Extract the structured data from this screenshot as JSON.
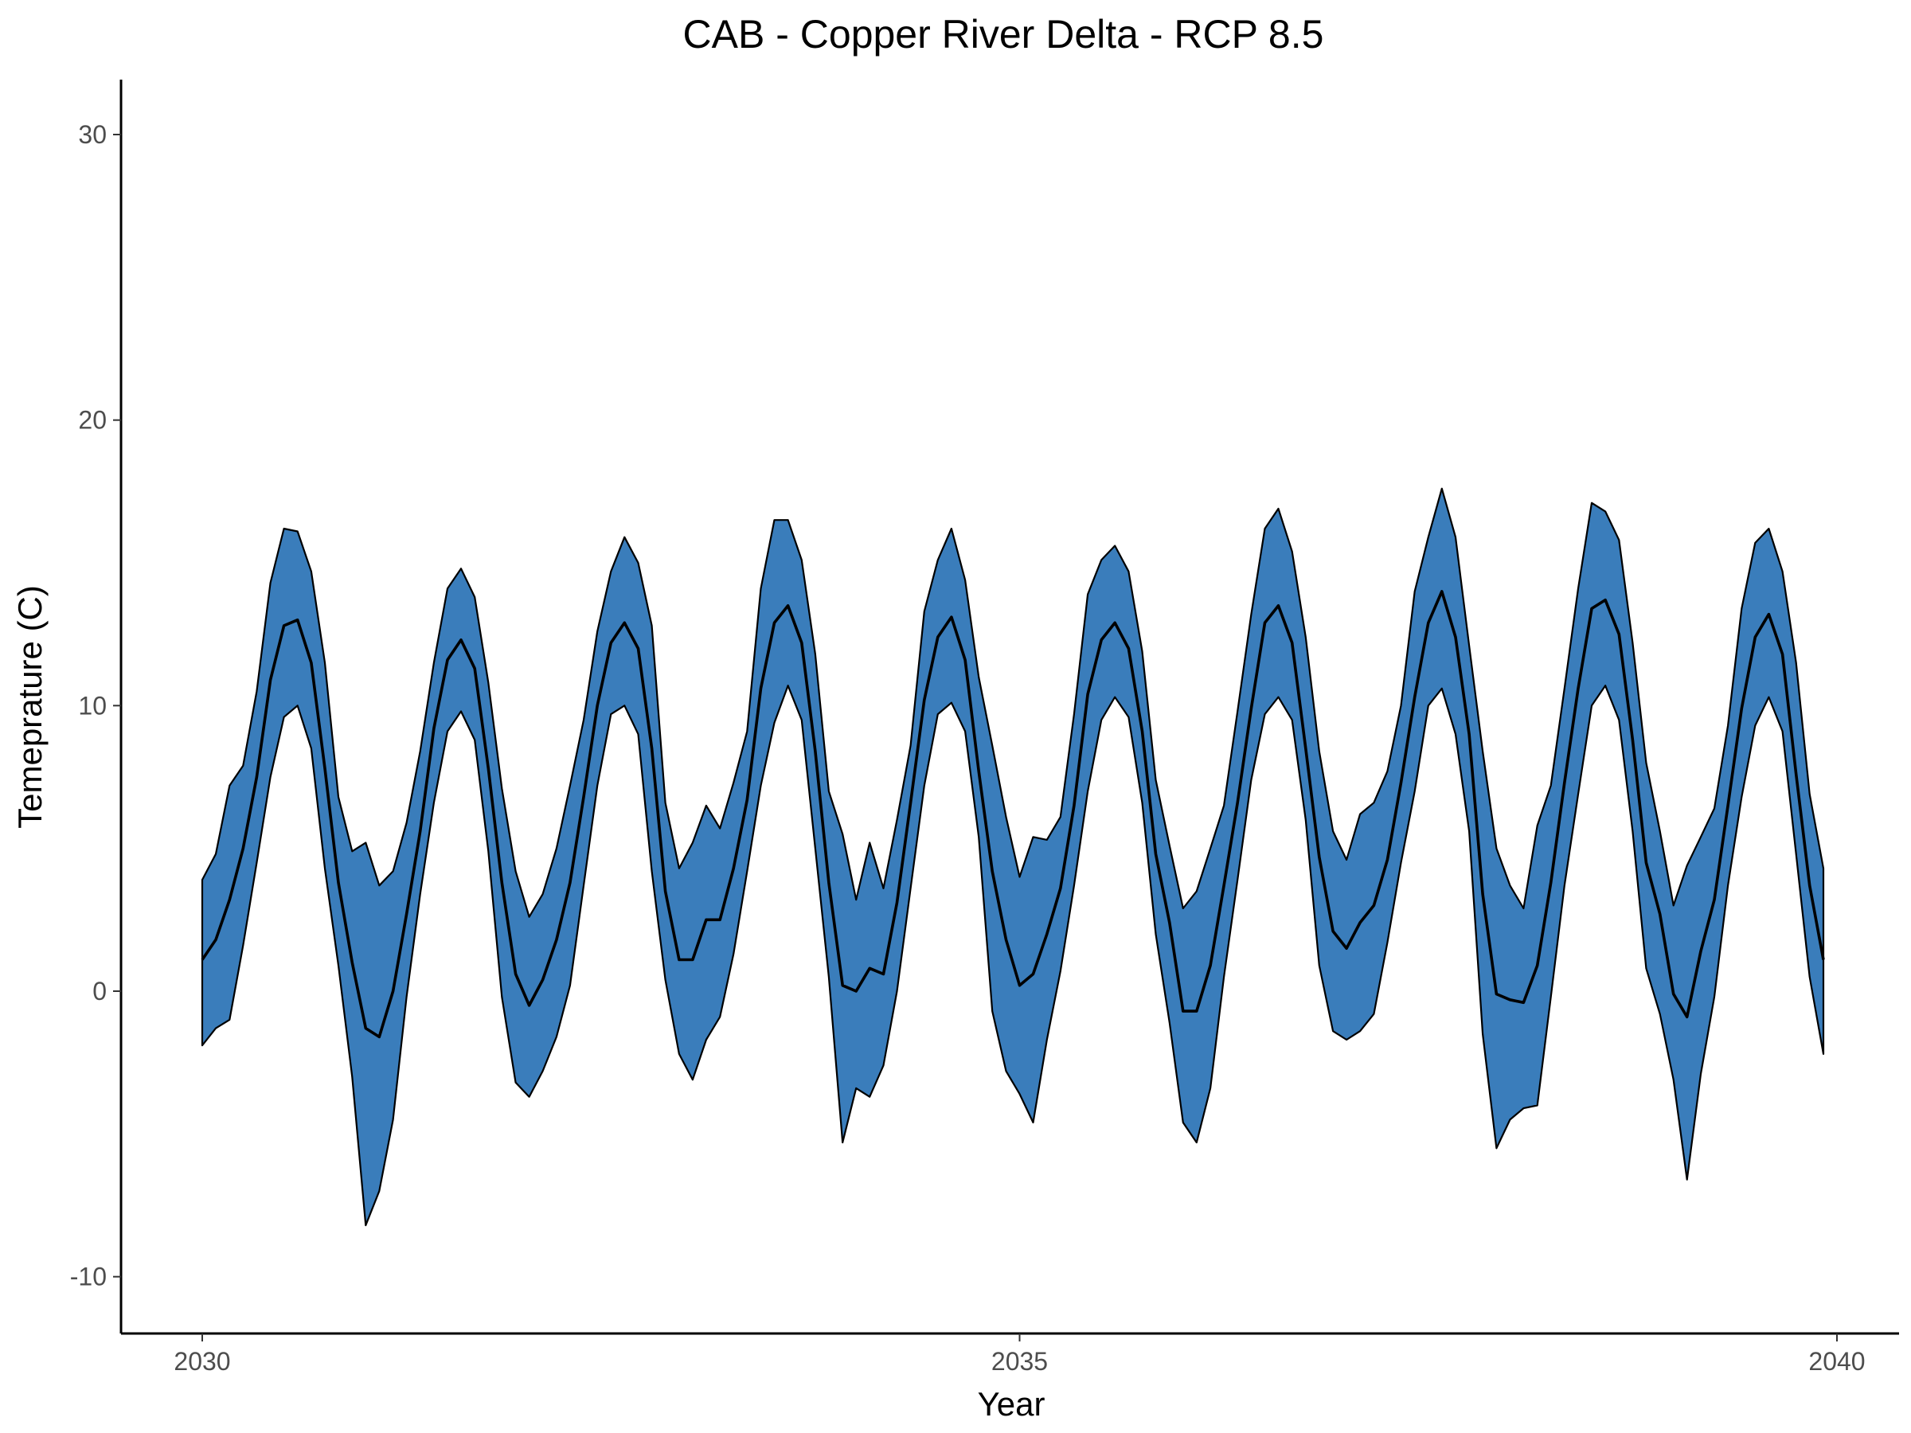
{
  "chart_data": {
    "type": "area",
    "title": "CAB - Copper River Delta - RCP 8.5",
    "xlabel": "Year",
    "ylabel": "Temeprature (C)",
    "xlim": [
      2029.5,
      2040.4
    ],
    "ylim": [
      -12,
      32
    ],
    "x_ticks": [
      2030,
      2035,
      2040
    ],
    "x_tick_labels": [
      "2030",
      "2035",
      "2040"
    ],
    "y_ticks": [
      -10,
      0,
      10,
      20,
      30
    ],
    "y_tick_labels": [
      "-10",
      "0",
      "10",
      "20",
      "30"
    ],
    "grid": false,
    "legend": "none",
    "colors": {
      "ribbon": "#3a7dbb",
      "line": "#000000"
    },
    "x": [
      2030.0,
      2030.083,
      2030.167,
      2030.25,
      2030.333,
      2030.417,
      2030.5,
      2030.583,
      2030.667,
      2030.75,
      2030.833,
      2030.917,
      2031.0,
      2031.083,
      2031.167,
      2031.25,
      2031.333,
      2031.417,
      2031.5,
      2031.583,
      2031.667,
      2031.75,
      2031.833,
      2031.917,
      2032.0,
      2032.083,
      2032.167,
      2032.25,
      2032.333,
      2032.417,
      2032.5,
      2032.583,
      2032.667,
      2032.75,
      2032.833,
      2032.917,
      2033.0,
      2033.083,
      2033.167,
      2033.25,
      2033.333,
      2033.417,
      2033.5,
      2033.583,
      2033.667,
      2033.75,
      2033.833,
      2033.917,
      2034.0,
      2034.083,
      2034.167,
      2034.25,
      2034.333,
      2034.417,
      2034.5,
      2034.583,
      2034.667,
      2034.75,
      2034.833,
      2034.917,
      2035.0,
      2035.083,
      2035.167,
      2035.25,
      2035.333,
      2035.417,
      2035.5,
      2035.583,
      2035.667,
      2035.75,
      2035.833,
      2035.917,
      2036.0,
      2036.083,
      2036.167,
      2036.25,
      2036.333,
      2036.417,
      2036.5,
      2036.583,
      2036.667,
      2036.75,
      2036.833,
      2036.917,
      2037.0,
      2037.083,
      2037.167,
      2037.25,
      2037.333,
      2037.417,
      2037.5,
      2037.583,
      2037.667,
      2037.75,
      2037.833,
      2037.917,
      2038.0,
      2038.083,
      2038.167,
      2038.25,
      2038.333,
      2038.417,
      2038.5,
      2038.583,
      2038.667,
      2038.75,
      2038.833,
      2038.917,
      2039.0,
      2039.083,
      2039.167,
      2039.25,
      2039.333,
      2039.417,
      2039.5,
      2039.583,
      2039.667,
      2039.75,
      2039.833,
      2039.917
    ],
    "series": [
      {
        "role": "mean",
        "values": [
          1.1,
          1.8,
          3.2,
          5.0,
          7.5,
          10.9,
          12.8,
          13.0,
          11.5,
          7.8,
          3.8,
          1.0,
          -1.3,
          -1.6,
          0.0,
          2.7,
          5.6,
          9.2,
          11.6,
          12.3,
          11.3,
          7.8,
          3.8,
          0.6,
          -0.5,
          0.4,
          1.8,
          3.8,
          6.8,
          10.0,
          12.2,
          12.9,
          12.0,
          8.5,
          3.5,
          1.1,
          1.1,
          2.5,
          2.5,
          4.3,
          6.7,
          10.6,
          12.9,
          13.5,
          12.2,
          8.4,
          3.8,
          0.2,
          0.0,
          0.8,
          0.6,
          3.1,
          6.6,
          10.2,
          12.4,
          13.1,
          11.6,
          7.7,
          4.2,
          1.8,
          0.2,
          0.6,
          2.0,
          3.6,
          6.5,
          10.4,
          12.3,
          12.9,
          12.0,
          9.1,
          4.8,
          2.4,
          -0.7,
          -0.7,
          0.9,
          3.7,
          6.6,
          9.9,
          12.9,
          13.5,
          12.2,
          8.5,
          4.7,
          2.1,
          1.5,
          2.4,
          3.0,
          4.6,
          7.3,
          10.3,
          12.9,
          14.0,
          12.4,
          9.0,
          3.4,
          -0.1,
          -0.3,
          -0.4,
          0.9,
          3.8,
          7.3,
          10.6,
          13.4,
          13.7,
          12.5,
          8.8,
          4.5,
          2.7,
          -0.1,
          -0.9,
          1.4,
          3.2,
          6.5,
          9.9,
          12.4,
          13.2,
          11.8,
          7.6,
          3.7,
          1.1
        ]
      },
      {
        "role": "upper",
        "values": [
          3.9,
          4.8,
          7.2,
          7.9,
          10.5,
          14.3,
          16.2,
          16.1,
          14.7,
          11.5,
          6.8,
          4.9,
          5.2,
          3.7,
          4.2,
          5.9,
          8.4,
          11.5,
          14.1,
          14.8,
          13.8,
          10.8,
          7.1,
          4.2,
          2.6,
          3.4,
          5.0,
          7.2,
          9.5,
          12.6,
          14.7,
          15.9,
          15.0,
          12.8,
          6.6,
          4.3,
          5.2,
          6.5,
          5.7,
          7.3,
          9.1,
          14.1,
          16.5,
          16.5,
          15.1,
          11.8,
          7.0,
          5.5,
          3.2,
          5.2,
          3.6,
          6.0,
          8.6,
          13.3,
          15.1,
          16.2,
          14.4,
          11.0,
          8.6,
          6.1,
          4.0,
          5.4,
          5.3,
          6.1,
          9.7,
          13.9,
          15.1,
          15.6,
          14.7,
          11.9,
          7.4,
          5.1,
          2.9,
          3.5,
          5.0,
          6.5,
          9.8,
          13.2,
          16.2,
          16.9,
          15.4,
          12.4,
          8.4,
          5.6,
          4.6,
          6.2,
          6.6,
          7.7,
          10.0,
          14.0,
          15.9,
          17.6,
          15.9,
          12.1,
          8.4,
          5.0,
          3.7,
          2.9,
          5.8,
          7.2,
          10.6,
          14.1,
          17.1,
          16.8,
          15.8,
          12.2,
          8.0,
          5.6,
          3.0,
          4.4,
          5.4,
          6.4,
          9.3,
          13.4,
          15.7,
          16.2,
          14.7,
          11.5,
          6.9,
          4.3
        ]
      },
      {
        "role": "lower",
        "values": [
          -1.9,
          -1.3,
          -1.0,
          1.6,
          4.5,
          7.5,
          9.6,
          10.0,
          8.5,
          4.3,
          0.9,
          -3.0,
          -8.2,
          -7.0,
          -4.5,
          -0.2,
          3.4,
          6.6,
          9.1,
          9.8,
          8.8,
          4.9,
          -0.2,
          -3.2,
          -3.7,
          -2.8,
          -1.6,
          0.2,
          3.7,
          7.2,
          9.7,
          10.0,
          9.0,
          4.2,
          0.4,
          -2.2,
          -3.1,
          -1.7,
          -0.9,
          1.3,
          4.2,
          7.2,
          9.4,
          10.7,
          9.5,
          5.0,
          0.5,
          -5.3,
          -3.4,
          -3.7,
          -2.6,
          0.0,
          3.6,
          7.2,
          9.7,
          10.1,
          9.1,
          5.4,
          -0.7,
          -2.8,
          -3.6,
          -4.6,
          -1.7,
          0.7,
          3.7,
          7.0,
          9.5,
          10.3,
          9.6,
          6.6,
          2.0,
          -1.1,
          -4.6,
          -5.3,
          -3.4,
          0.5,
          3.9,
          7.4,
          9.7,
          10.3,
          9.5,
          6.0,
          0.9,
          -1.4,
          -1.7,
          -1.4,
          -0.8,
          1.7,
          4.5,
          7.0,
          10.0,
          10.6,
          9.0,
          5.6,
          -1.5,
          -5.5,
          -4.5,
          -4.1,
          -4.0,
          -0.2,
          3.7,
          6.9,
          10.0,
          10.7,
          9.5,
          5.6,
          0.8,
          -0.8,
          -3.1,
          -6.6,
          -2.9,
          -0.2,
          3.7,
          6.8,
          9.3,
          10.3,
          9.1,
          4.8,
          0.5,
          -2.2
        ]
      }
    ]
  }
}
